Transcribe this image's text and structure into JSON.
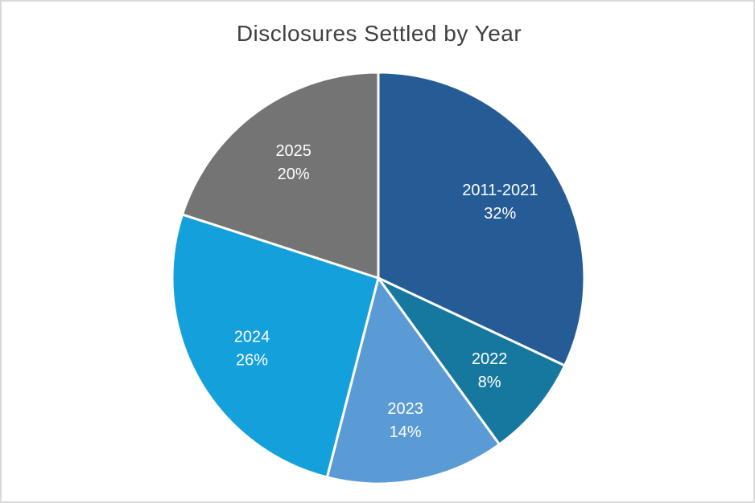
{
  "chart_data": {
    "type": "pie",
    "title": "Disclosures Settled by Year",
    "categories": [
      "2011-2021",
      "2022",
      "2023",
      "2024",
      "2025"
    ],
    "values": [
      32,
      8,
      14,
      26,
      20
    ],
    "unit": "%",
    "series": [
      {
        "name": "Disclosures Settled",
        "points": [
          {
            "label": "2011-2021",
            "value_pct": 32,
            "color": "#265C96"
          },
          {
            "label": "2022",
            "value_pct": 8,
            "color": "#17789F"
          },
          {
            "label": "2023",
            "value_pct": 14,
            "color": "#5B9BD5"
          },
          {
            "label": "2024",
            "value_pct": 26,
            "color": "#14A0DB"
          },
          {
            "label": "2025",
            "value_pct": 20,
            "color": "#747474"
          }
        ]
      }
    ],
    "slice_colors": [
      "#265C96",
      "#17789F",
      "#5B9BD5",
      "#14A0DB",
      "#747474"
    ],
    "start_angle_deg": 0,
    "direction": "clockwise",
    "data_label_format": "category + percent",
    "data_label_color": "#FFFFFF",
    "legend_position": "none",
    "title_color": "#404040"
  },
  "canvas": {
    "background_color": "#FFFFFF",
    "border_color": "#D9D9D9"
  }
}
